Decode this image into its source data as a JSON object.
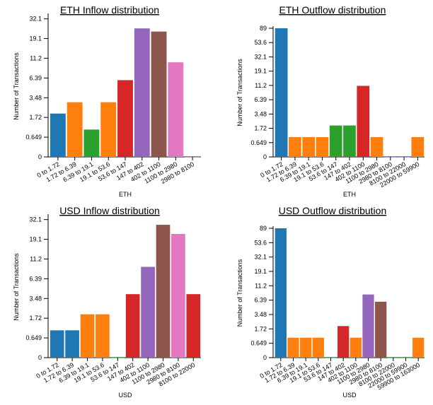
{
  "chart_data": [
    {
      "type": "bar",
      "title": "ETH Inflow distribution",
      "x_label": "ETH",
      "y_label": "Number of Transactions",
      "yscale": "log1p",
      "categories": [
        "0 to 1.72",
        "1.72 to 6.39",
        "6.39 to 19.1",
        "19.1 to 53.6",
        "53.6 to 147",
        "147 to 402",
        "402 to 1100",
        "1100 to 2980",
        "2980 to 8100"
      ],
      "values": [
        2,
        3,
        1,
        3,
        6,
        25,
        23,
        10,
        0
      ],
      "colors": [
        "#1f77b4",
        "#ff7f0e",
        "#2ca02c",
        "#ff7f0e",
        "#d62728",
        "#9467bd",
        "#8c564b",
        "#e377c2",
        "#9467bd"
      ],
      "ylim": [
        0,
        35
      ],
      "yticks": [
        0,
        0.649,
        1.72,
        3.48,
        6.39,
        11.2,
        19.1,
        32.1
      ]
    },
    {
      "type": "bar",
      "title": "ETH Outflow distribution",
      "x_label": "ETH",
      "y_label": "Number of Transactions",
      "yscale": "log1p",
      "categories": [
        "0 to 1.72",
        "1.72 to 6.39",
        "6.39 to 19.1",
        "19.1 to 53.6",
        "53.6 to 147",
        "147 to 402",
        "402 to 1100",
        "1100 to 2980",
        "2980 to 8100",
        "8100 to 22000",
        "22000 to 59900"
      ],
      "values": [
        89,
        1,
        1,
        1,
        2,
        2,
        11,
        1,
        0,
        0,
        1
      ],
      "colors": [
        "#1f77b4",
        "#ff7f0e",
        "#ff7f0e",
        "#ff7f0e",
        "#2ca02c",
        "#2ca02c",
        "#d62728",
        "#ff7f0e",
        "#9467bd",
        "#9467bd",
        "#ff7f0e"
      ],
      "ylim": [
        0,
        89
      ],
      "yticks": [
        0,
        0.649,
        1.72,
        3.48,
        6.39,
        11.2,
        19.1,
        32.1,
        53.6,
        89
      ]
    },
    {
      "type": "bar",
      "title": "USD Inflow distribution",
      "x_label": "USD",
      "y_label": "Number of Transactions",
      "yscale": "log1p",
      "categories": [
        "0 to 1.72",
        "1.72 to 6.39",
        "6.39 to 19.1",
        "19.1 to 53.6",
        "53.6 to 147",
        "147 to 402",
        "402 to 1100",
        "1100 to 2980",
        "2980 to 8100",
        "8100 to 22000"
      ],
      "values": [
        1,
        1,
        2,
        2,
        0,
        4,
        9,
        28,
        22,
        4
      ],
      "colors": [
        "#1f77b4",
        "#1f77b4",
        "#ff7f0e",
        "#ff7f0e",
        "#2ca02c",
        "#d62728",
        "#9467bd",
        "#8c564b",
        "#e377c2",
        "#d62728"
      ],
      "ylim": [
        0,
        35
      ],
      "yticks": [
        0,
        0.649,
        1.72,
        3.48,
        6.39,
        11.2,
        19.1,
        32.1
      ]
    },
    {
      "type": "bar",
      "title": "USD Outflow distribution",
      "x_label": "USD",
      "y_label": "Number of Transactions",
      "yscale": "log1p",
      "categories": [
        "0 to 1.72",
        "1.72 to 6.39",
        "6.39 to 19.1",
        "19.1 to 53.6",
        "53.6 to 147",
        "147 to 402",
        "402 to 1100",
        "1100 to 2980",
        "2980 to 8100",
        "8100 to 22000",
        "22000 to 59900",
        "59900 to 163000"
      ],
      "values": [
        89,
        1,
        1,
        1,
        0,
        2,
        1,
        8,
        6,
        0,
        0,
        1
      ],
      "colors": [
        "#1f77b4",
        "#ff7f0e",
        "#ff7f0e",
        "#ff7f0e",
        "#2ca02c",
        "#d62728",
        "#ff7f0e",
        "#9467bd",
        "#8c564b",
        "#2ca02c",
        "#2ca02c",
        "#ff7f0e"
      ],
      "ylim": [
        0,
        89
      ],
      "yticks": [
        0,
        0.649,
        1.72,
        3.48,
        6.39,
        11.2,
        19.1,
        32.1,
        53.6,
        89
      ]
    }
  ]
}
